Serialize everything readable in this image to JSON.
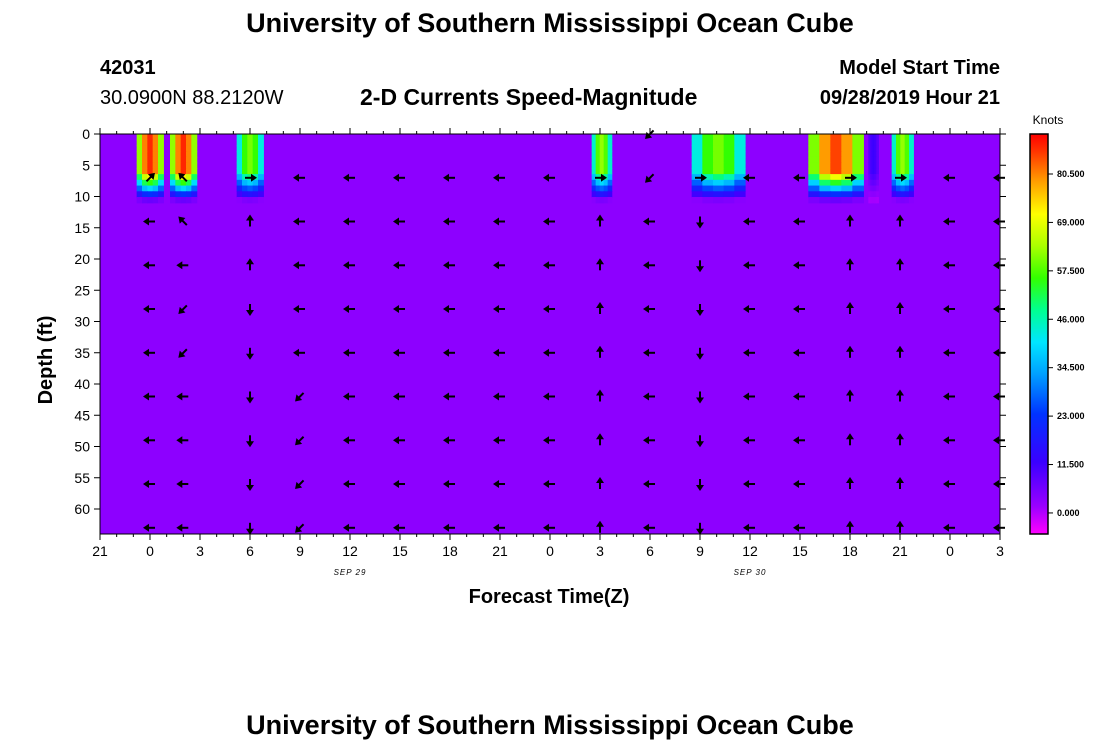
{
  "header": {
    "title": "University of Southern Mississippi Ocean Cube",
    "station_id": "42031",
    "location": "30.0900N 88.2120W",
    "subtitle": "2-D Currents Speed-Magnitude",
    "model_start_label": "Model Start Time",
    "model_start_value": "09/28/2019 Hour 21"
  },
  "footer": {
    "title": "University of Southern Mississippi Ocean Cube"
  },
  "chart_data": {
    "type": "heatmap",
    "title": "2-D Currents Speed-Magnitude",
    "xlabel": "Forecast Time(Z)",
    "ylabel": "Depth (ft)",
    "x_range_hours": [
      0,
      54
    ],
    "x_ticks": [
      {
        "h": 0,
        "label": "21"
      },
      {
        "h": 3,
        "label": "0"
      },
      {
        "h": 6,
        "label": "3"
      },
      {
        "h": 9,
        "label": "6"
      },
      {
        "h": 12,
        "label": "9"
      },
      {
        "h": 15,
        "label": "12"
      },
      {
        "h": 18,
        "label": "15"
      },
      {
        "h": 21,
        "label": "18"
      },
      {
        "h": 24,
        "label": "21"
      },
      {
        "h": 27,
        "label": "0"
      },
      {
        "h": 30,
        "label": "3"
      },
      {
        "h": 33,
        "label": "6"
      },
      {
        "h": 36,
        "label": "9"
      },
      {
        "h": 39,
        "label": "12"
      },
      {
        "h": 42,
        "label": "15"
      },
      {
        "h": 45,
        "label": "18"
      },
      {
        "h": 48,
        "label": "21"
      },
      {
        "h": 51,
        "label": "0"
      },
      {
        "h": 54,
        "label": "3"
      }
    ],
    "date_labels": [
      {
        "h": 15,
        "label": "SEP 29"
      },
      {
        "h": 39,
        "label": "SEP 30"
      }
    ],
    "y_range": [
      0,
      64
    ],
    "y_ticks": [
      0,
      5,
      10,
      15,
      20,
      25,
      30,
      35,
      40,
      45,
      50,
      55,
      60
    ],
    "background_value": 3,
    "colorbar": {
      "title": "Knots",
      "range": [
        -5,
        90
      ],
      "labels": [
        "80.500",
        "69.000",
        "57.500",
        "46.000",
        "34.500",
        "23.000",
        "11.500",
        "0.000"
      ],
      "label_values": [
        80.5,
        69,
        57.5,
        46,
        34.5,
        23,
        11.5,
        0
      ]
    },
    "patches": [
      {
        "h0": 2.2,
        "h1": 3.8,
        "peak": 87,
        "depth": 11
      },
      {
        "h0": 4.2,
        "h1": 5.8,
        "peak": 87,
        "depth": 11
      },
      {
        "h0": 8.2,
        "h1": 9.8,
        "peak": 60,
        "depth": 11
      },
      {
        "h0": 29.5,
        "h1": 30.7,
        "peak": 62,
        "depth": 11
      },
      {
        "h0": 35.5,
        "h1": 38.7,
        "peak": 60,
        "depth": 11
      },
      {
        "h0": 42.5,
        "h1": 45.8,
        "peak": 85,
        "depth": 11
      },
      {
        "h0": 46.1,
        "h1": 46.7,
        "peak": 12,
        "depth": 11
      },
      {
        "h0": 47.5,
        "h1": 48.8,
        "peak": 62,
        "depth": 11
      }
    ],
    "vector_depths": [
      0,
      7,
      14,
      21,
      28,
      35,
      42,
      49,
      56,
      63
    ],
    "vector_columns": [
      {
        "h": 3,
        "dirs": [
          "",
          "NE",
          "W",
          "W",
          "W",
          "W",
          "W",
          "W",
          "W",
          "W"
        ]
      },
      {
        "h": 5,
        "dirs": [
          "",
          "NW",
          "NW",
          "W",
          "SW",
          "SW",
          "W",
          "W",
          "W",
          "W"
        ]
      },
      {
        "h": 9,
        "dirs": [
          "",
          "E",
          "N",
          "N",
          "S",
          "S",
          "S",
          "S",
          "S",
          "S"
        ]
      },
      {
        "h": 12,
        "dirs": [
          "",
          "W",
          "W",
          "W",
          "W",
          "W",
          "SW",
          "SW",
          "SW",
          "SW"
        ]
      },
      {
        "h": 15,
        "dirs": [
          "",
          "W",
          "W",
          "W",
          "W",
          "W",
          "W",
          "W",
          "W",
          "W"
        ]
      },
      {
        "h": 18,
        "dirs": [
          "",
          "W",
          "W",
          "W",
          "W",
          "W",
          "W",
          "W",
          "W",
          "W"
        ]
      },
      {
        "h": 21,
        "dirs": [
          "",
          "W",
          "W",
          "W",
          "W",
          "W",
          "W",
          "W",
          "W",
          "W"
        ]
      },
      {
        "h": 24,
        "dirs": [
          "",
          "W",
          "W",
          "W",
          "W",
          "W",
          "W",
          "W",
          "W",
          "W"
        ]
      },
      {
        "h": 27,
        "dirs": [
          "",
          "W",
          "W",
          "W",
          "W",
          "W",
          "W",
          "W",
          "W",
          "W"
        ]
      },
      {
        "h": 30,
        "dirs": [
          "",
          "E",
          "N",
          "N",
          "N",
          "N",
          "N",
          "N",
          "N",
          "N"
        ]
      },
      {
        "h": 33,
        "dirs": [
          "SW",
          "SW",
          "W",
          "W",
          "W",
          "W",
          "W",
          "W",
          "W",
          "W"
        ]
      },
      {
        "h": 36,
        "dirs": [
          "",
          "E",
          "S",
          "S",
          "S",
          "S",
          "S",
          "S",
          "S",
          "S"
        ]
      },
      {
        "h": 39,
        "dirs": [
          "",
          "W",
          "W",
          "W",
          "W",
          "W",
          "W",
          "W",
          "W",
          "W"
        ]
      },
      {
        "h": 42,
        "dirs": [
          "",
          "W",
          "W",
          "W",
          "W",
          "W",
          "W",
          "W",
          "W",
          "W"
        ]
      },
      {
        "h": 45,
        "dirs": [
          "",
          "E",
          "N",
          "N",
          "N",
          "N",
          "N",
          "N",
          "N",
          "N"
        ]
      },
      {
        "h": 48,
        "dirs": [
          "",
          "E",
          "N",
          "N",
          "N",
          "N",
          "N",
          "N",
          "N",
          "N"
        ]
      },
      {
        "h": 51,
        "dirs": [
          "",
          "W",
          "W",
          "W",
          "W",
          "W",
          "W",
          "W",
          "W",
          "W"
        ]
      },
      {
        "h": 54,
        "dirs": [
          "",
          "W",
          "W",
          "W",
          "W",
          "W",
          "W",
          "W",
          "W",
          "W"
        ]
      }
    ]
  }
}
